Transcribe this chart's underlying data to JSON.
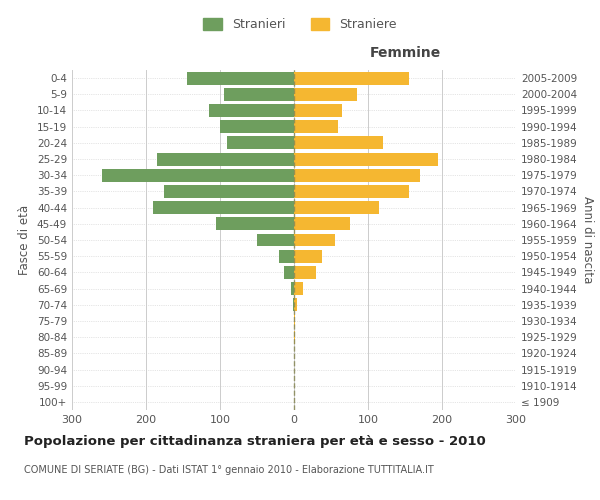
{
  "age_groups": [
    "100+",
    "95-99",
    "90-94",
    "85-89",
    "80-84",
    "75-79",
    "70-74",
    "65-69",
    "60-64",
    "55-59",
    "50-54",
    "45-49",
    "40-44",
    "35-39",
    "30-34",
    "25-29",
    "20-24",
    "15-19",
    "10-14",
    "5-9",
    "0-4"
  ],
  "birth_years": [
    "≤ 1909",
    "1910-1914",
    "1915-1919",
    "1920-1924",
    "1925-1929",
    "1930-1934",
    "1935-1939",
    "1940-1944",
    "1945-1949",
    "1950-1954",
    "1955-1959",
    "1960-1964",
    "1965-1969",
    "1970-1974",
    "1975-1979",
    "1980-1984",
    "1985-1989",
    "1990-1994",
    "1995-1999",
    "2000-2004",
    "2005-2009"
  ],
  "males": [
    0,
    0,
    0,
    0,
    0,
    0,
    2,
    4,
    14,
    20,
    50,
    105,
    190,
    175,
    260,
    185,
    90,
    100,
    115,
    95,
    145
  ],
  "females": [
    0,
    0,
    0,
    0,
    1,
    2,
    4,
    12,
    30,
    38,
    55,
    75,
    115,
    155,
    170,
    195,
    120,
    60,
    65,
    85,
    155
  ],
  "male_color": "#6e9e5e",
  "female_color": "#f5b731",
  "grid_color": "#cccccc",
  "center_line_color": "#888855",
  "background_color": "#ffffff",
  "title": "Popolazione per cittadinanza straniera per età e sesso - 2010",
  "subtitle": "COMUNE DI SERIATE (BG) - Dati ISTAT 1° gennaio 2010 - Elaborazione TUTTITALIA.IT",
  "ylabel_left": "Fasce di età",
  "ylabel_right": "Anni di nascita",
  "xlabel_femmine": "Femmine",
  "legend_male": "Stranieri",
  "legend_female": "Straniere",
  "xlim": 300,
  "bar_height": 0.8
}
